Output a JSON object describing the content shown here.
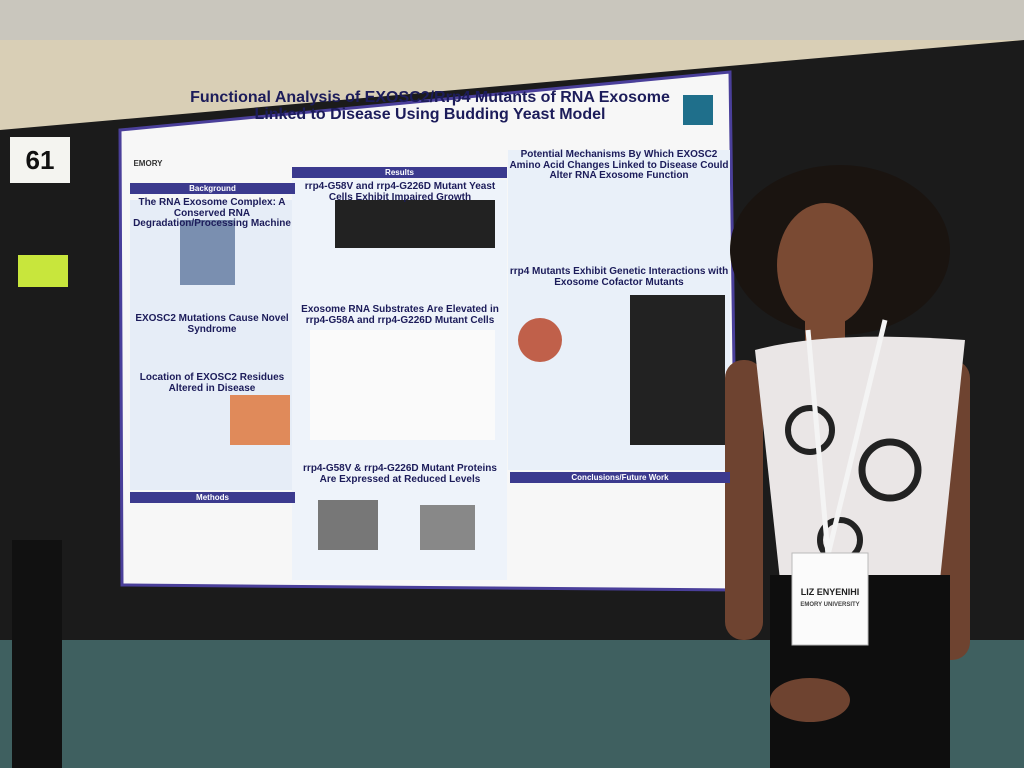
{
  "booth_number": "61",
  "poster": {
    "title": "Functional Analysis of EXOSC2/Rrp4 Mutants of RNA Exosome Linked to Disease Using Budding Yeast Model",
    "logo": "EMORY",
    "left_column": {
      "bar": "Background",
      "headings": [
        "The RNA Exosome Complex: A Conserved RNA Degradation/Processing Machine",
        "EXOSC2 Mutations Cause Novel Syndrome",
        "Location of EXOSC2 Residues Altered in Disease"
      ],
      "methods_bar": "Methods"
    },
    "middle_column": {
      "bar": "Results",
      "headings": [
        "rrp4-G58V and rrp4-G226D Mutant Yeast Cells Exhibit Impaired Growth",
        "Exosome RNA Substrates Are Elevated in rrp4-G58A and rrp4-G226D Mutant Cells",
        "rrp4-G58V & rrp4-G226D Mutant Proteins Are Expressed at Reduced Levels"
      ]
    },
    "right_column": {
      "headings": [
        "Potential Mechanisms By Which EXOSC2 Amino Acid Changes Linked to Disease Could Alter RNA Exosome Function",
        "rrp4 Mutants Exhibit Genetic Interactions with Exosome Cofactor Mutants"
      ],
      "conclusions_bar": "Conclusions/Future Work"
    }
  },
  "badge": {
    "name": "LIZ ENYENIHI",
    "affiliation": "EMORY UNIVERSITY"
  }
}
